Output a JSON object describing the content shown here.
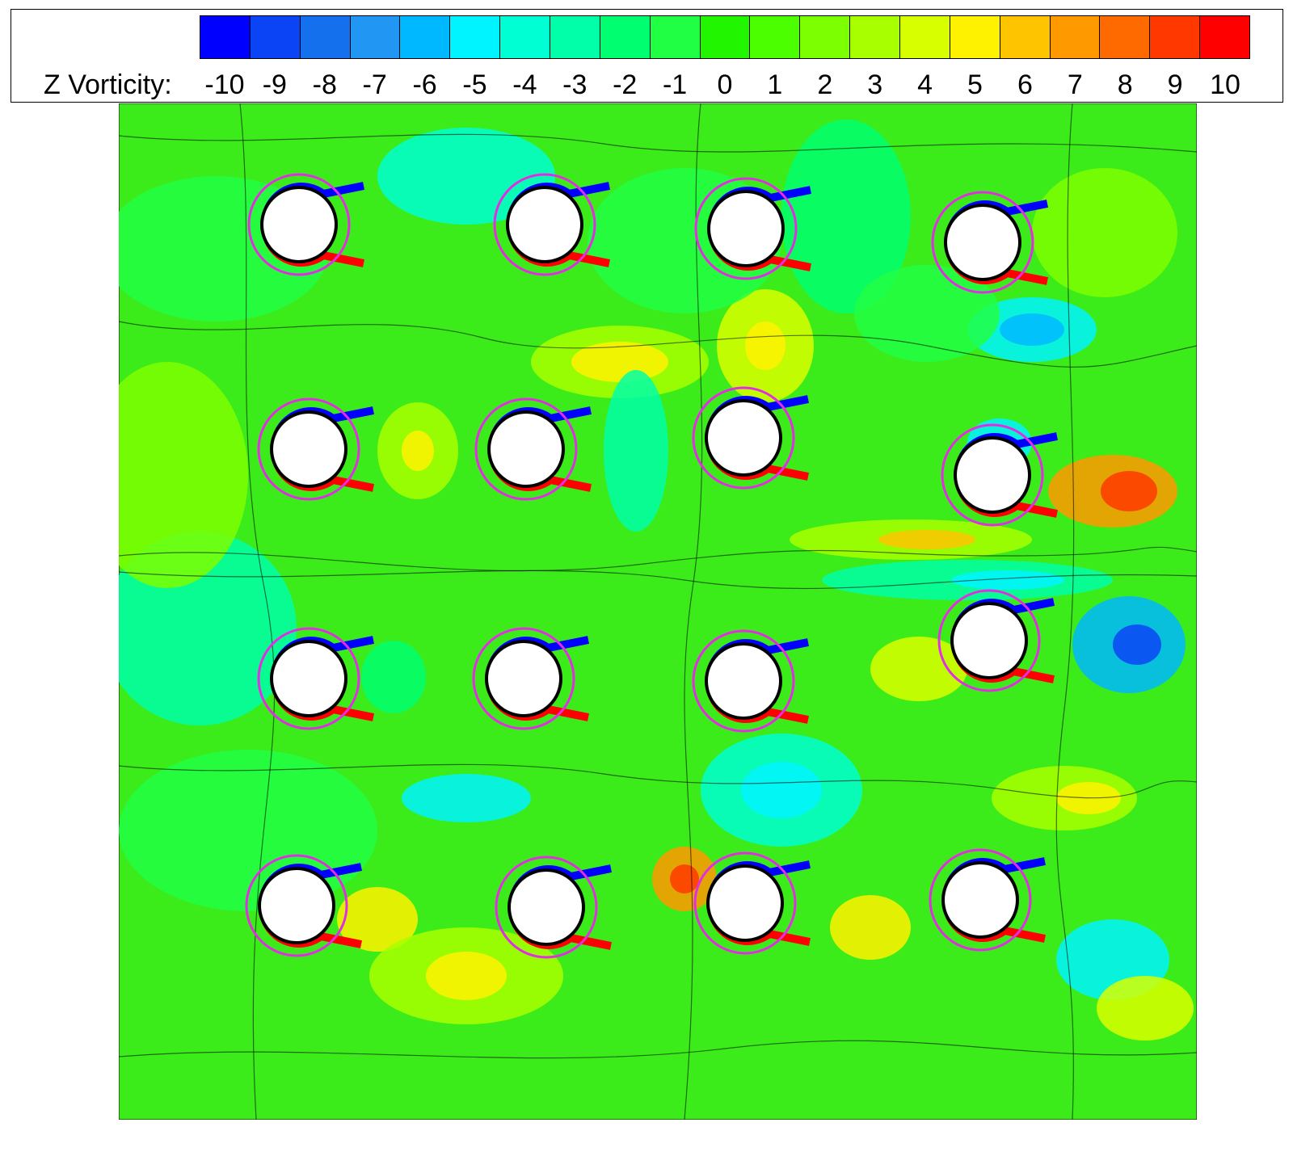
{
  "legend": {
    "title": "Z Vorticity:",
    "levels": [
      "-10",
      "-9",
      "-8",
      "-7",
      "-6",
      "-5",
      "-4",
      "-3",
      "-2",
      "-1",
      "0",
      "1",
      "2",
      "3",
      "4",
      "5",
      "6",
      "7",
      "8",
      "9",
      "10"
    ],
    "colors": [
      "#0000ff",
      "#0b44f5",
      "#1570ee",
      "#2196f3",
      "#00b8ff",
      "#00f4ff",
      "#00ffd2",
      "#00ffa8",
      "#00ff70",
      "#21ff45",
      "#22f500",
      "#4cff00",
      "#7cff00",
      "#a8ff00",
      "#d8ff00",
      "#fff200",
      "#ffc400",
      "#ff9900",
      "#ff6a00",
      "#ff3800",
      "#ff0000"
    ]
  },
  "field": {
    "background": "#3cec1a",
    "cylinder_fill": "#ffffff",
    "cylinder_outline": "#000000",
    "ring_color": "#e22ee2"
  }
}
